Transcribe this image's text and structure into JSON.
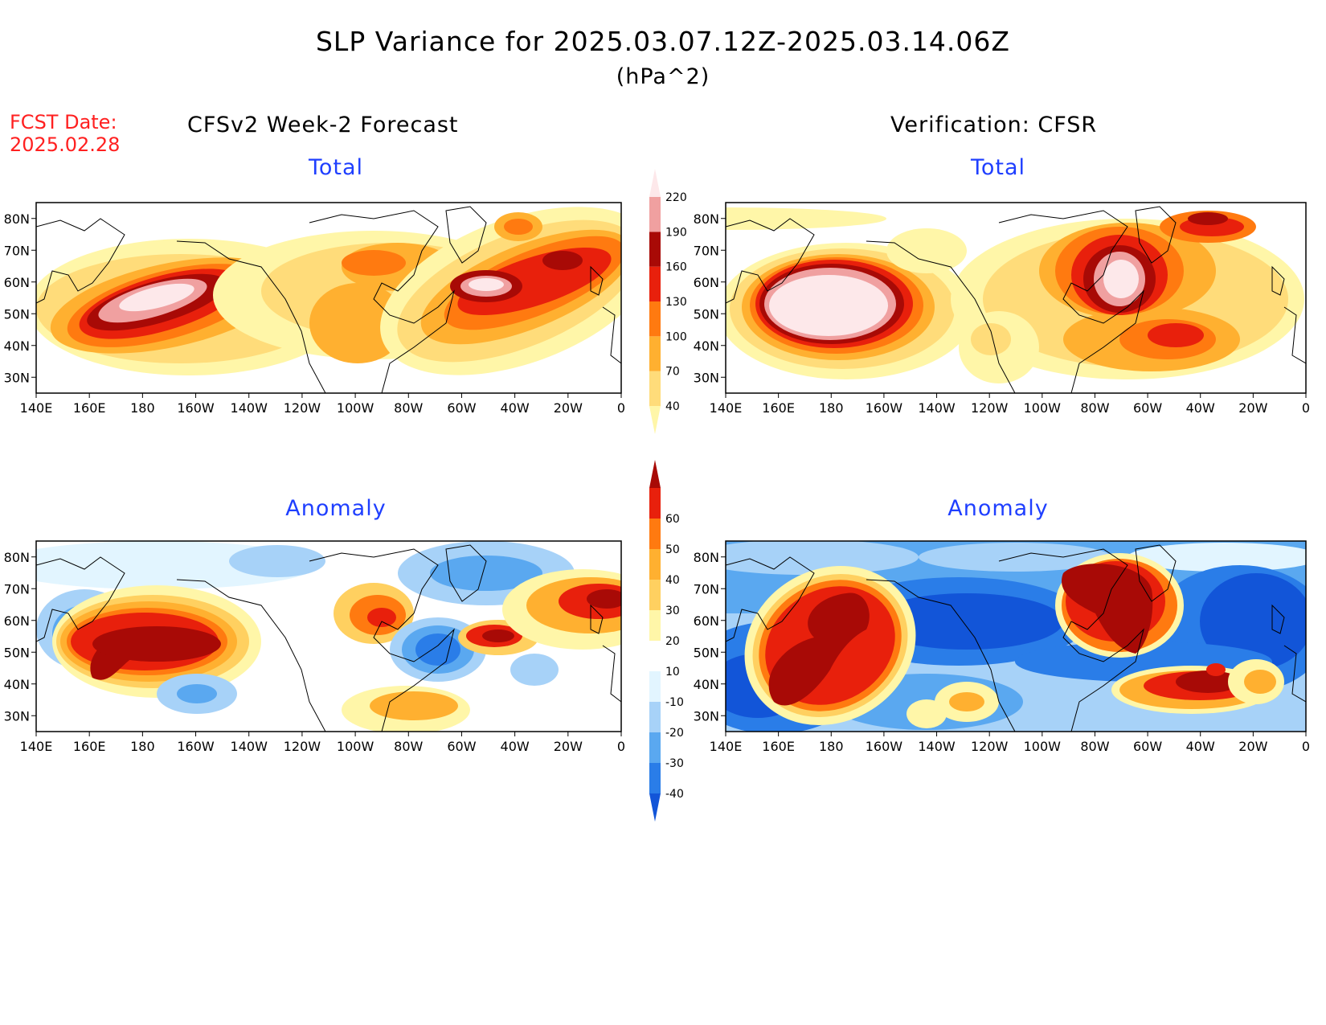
{
  "header": {
    "title": "SLP Variance for 2025.03.07.12Z-2025.03.14.06Z",
    "units": "(hPa^2)",
    "fcst_label": "FCST Date:",
    "fcst_date": "2025.02.28",
    "left_column": "CFSv2 Week-2 Forecast",
    "right_column": "Verification: CFSR"
  },
  "panels": {
    "fc_total": {
      "title": "Total"
    },
    "vf_total": {
      "title": "Total"
    },
    "fc_anom": {
      "title": "Anomaly"
    },
    "vf_anom": {
      "title": "Anomaly"
    }
  },
  "axes": {
    "lon_labels": [
      "140E",
      "160E",
      "180",
      "160W",
      "140W",
      "120W",
      "100W",
      "80W",
      "60W",
      "40W",
      "20W",
      "0"
    ],
    "lat_labels": [
      "30N",
      "40N",
      "50N",
      "60N",
      "70N",
      "80N"
    ]
  },
  "colorbars": {
    "total": {
      "levels": [
        "40",
        "70",
        "100",
        "130",
        "160",
        "190",
        "220"
      ],
      "colors": [
        "#fff6a8",
        "#ffdc7a",
        "#ffb030",
        "#ff7a10",
        "#e8200c",
        "#a80a06",
        "#f0a0a0",
        "#fde8ea"
      ]
    },
    "anomaly": {
      "levels": [
        "-40",
        "-30",
        "-20",
        "-10",
        "10",
        "20",
        "30",
        "40",
        "50",
        "60"
      ],
      "colors": [
        "#1255d8",
        "#2a7de8",
        "#5aa8f0",
        "#a7d2f8",
        "#e2f5ff",
        "#ffffff",
        "#fff6a8",
        "#ffd060",
        "#ffb030",
        "#ff7a10",
        "#e8200c",
        "#a80a06"
      ]
    }
  },
  "colors": {
    "title_blue": "#1f3fff",
    "fcst_red": "#ff2020"
  }
}
